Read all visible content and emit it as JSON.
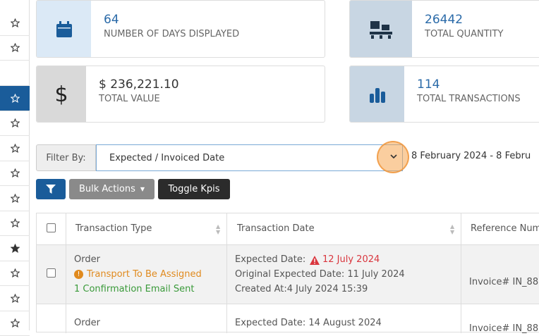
{
  "kpis": [
    {
      "value": "64",
      "label": "NUMBER OF DAYS DISPLAYED"
    },
    {
      "value": "26442",
      "label": "TOTAL QUANTITY"
    },
    {
      "value": "$ 236,221.10",
      "label": "TOTAL VALUE"
    },
    {
      "value": "114",
      "label": "TOTAL TRANSACTIONS"
    }
  ],
  "filter": {
    "label": "Filter By:",
    "selected": "Expected / Invoiced Date",
    "date_range": "8 February 2024 - 8 Febru"
  },
  "buttons": {
    "bulk": "Bulk Actions",
    "toggle": "Toggle Kpis"
  },
  "table": {
    "headers": [
      "Transaction Type",
      "Transaction Date",
      "Reference Num"
    ],
    "rows": [
      {
        "type": "Order",
        "status": "Transport To Be Assigned",
        "email": "1 Confirmation Email Sent",
        "expected_label": "Expected Date:",
        "expected": "12 July 2024",
        "original": "Original Expected Date: 11 July 2024",
        "created": "Created At:4 July 2024 15:39",
        "reference": "Invoice# IN_88"
      },
      {
        "type": "Order",
        "expected": "Expected Date: 14 August 2024",
        "reference": "Invoice# IN_88"
      }
    ]
  }
}
